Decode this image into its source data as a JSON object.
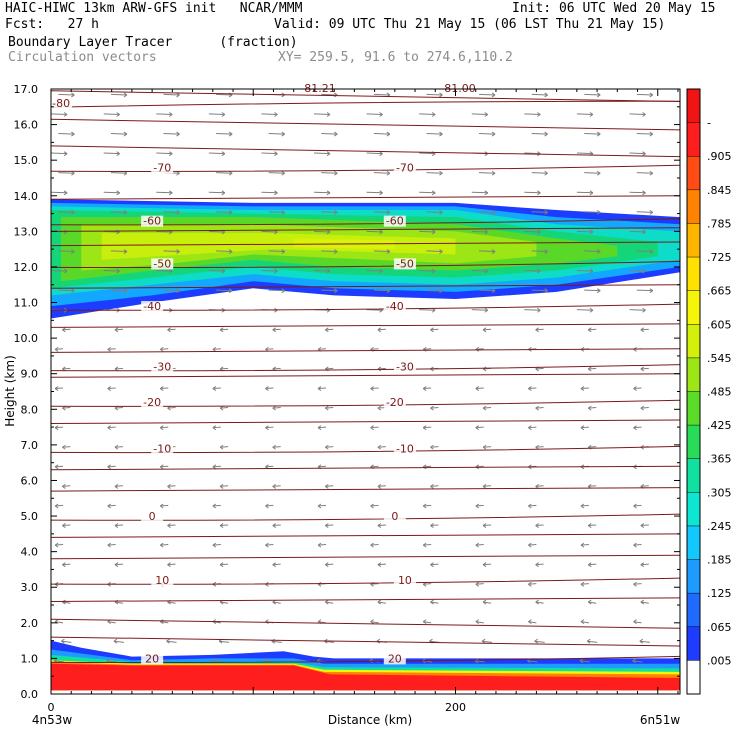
{
  "header": {
    "model_line": "HAIC-HIWC 13km ARW-GFS init   NCAR/MMM",
    "init_line": "Init: 06 UTC Wed 20 May 15",
    "fcst_line": "Fcst:   27 h",
    "valid_line": "Valid: 09 UTC Thu 21 May 15 (06 LST Thu 21 May 15)",
    "field_line": "Boundary Layer Tracer      (fraction)",
    "vector_line": "Circulation vectors",
    "xy_line": "XY= 259.5, 91.6 to 274.6,110.2"
  },
  "chart_data": {
    "type": "heatmap",
    "title": "Boundary Layer Tracer",
    "units": "(fraction)",
    "xlabel": "Distance (km)",
    "ylabel": "Height (km)",
    "xlim": [
      0,
      311
    ],
    "ylim": [
      0,
      17
    ],
    "x_ticks": [
      0,
      200
    ],
    "y_ticks": [
      "0.0",
      "1.0",
      "2.0",
      "3.0",
      "4.0",
      "5.0",
      "6.0",
      "7.0",
      "8.0",
      "9.0",
      "10.0",
      "11.0",
      "12.0",
      "13.0",
      "14.0",
      "15.0",
      "16.0",
      "17.0"
    ],
    "endpoint_labels": [
      "4n53w",
      "6n51w"
    ],
    "colorbar": {
      "labels": [
        ".005",
        ".065",
        ".125",
        ".185",
        ".245",
        ".305",
        ".365",
        ".425",
        ".485",
        ".545",
        ".605",
        ".665",
        ".725",
        ".785",
        ".845",
        ".905",
        "-"
      ],
      "colors": [
        "#ffffff",
        "#1e3cff",
        "#1f6bff",
        "#1e9bff",
        "#12c8ff",
        "#0ce6d2",
        "#10e0a0",
        "#28dc5a",
        "#5adc28",
        "#9be614",
        "#d2f00a",
        "#f5f50a",
        "#ffe100",
        "#ffb400",
        "#ff8200",
        "#ff4b14",
        "#ff1e1e",
        "#f01414"
      ]
    },
    "plume": {
      "upper_layer_km": {
        "bottom": [
          10.6,
          11.5
        ],
        "top": [
          13.5,
          14.0
        ],
        "core": [
          11.5,
          13.2
        ]
      },
      "surface_layer_km": {
        "left_top": 1.5,
        "right_top": 1.0,
        "transition_x": 130
      }
    },
    "contours": [
      {
        "label": "-80",
        "height_km": 16.6
      },
      {
        "label": "-70",
        "height_km": 14.8
      },
      {
        "label": "-60",
        "height_km": 13.3
      },
      {
        "label": "-50",
        "height_km": 12.1
      },
      {
        "label": "-40",
        "height_km": 10.9
      },
      {
        "label": "-30",
        "height_km": 9.2
      },
      {
        "label": "-20",
        "height_km": 8.2
      },
      {
        "label": "-10",
        "height_km": 6.9
      },
      {
        "label": "0",
        "height_km": 5.0
      },
      {
        "label": "10",
        "height_km": 3.2
      },
      {
        "label": "20",
        "height_km": 1.0
      }
    ],
    "top_partial_labels": [
      "81.21",
      "81.00"
    ],
    "vectors": {
      "upper_direction": "right",
      "lower_direction": "left",
      "reversal_height_km": 10.3
    }
  }
}
